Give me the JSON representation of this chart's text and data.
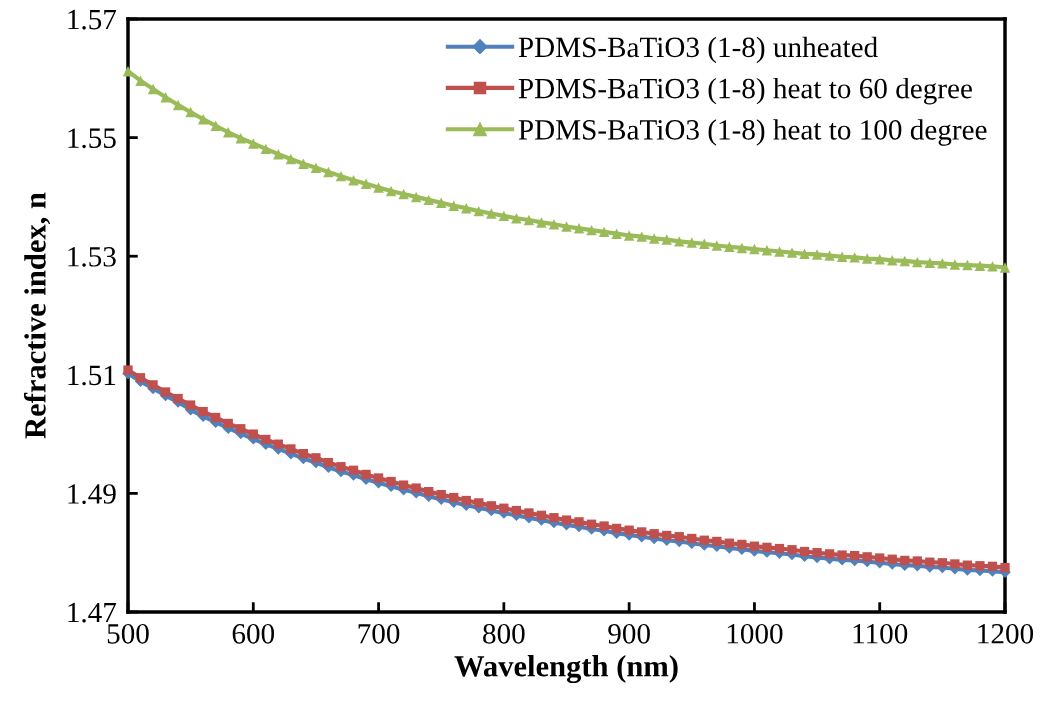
{
  "chart_data": {
    "type": "line",
    "xlabel": "Wavelength (nm)",
    "ylabel": "Refractive index, n",
    "x": [
      500,
      510,
      520,
      530,
      540,
      550,
      560,
      570,
      580,
      590,
      600,
      610,
      620,
      630,
      640,
      650,
      660,
      670,
      680,
      690,
      700,
      710,
      720,
      730,
      740,
      750,
      760,
      770,
      780,
      790,
      800,
      810,
      820,
      830,
      840,
      850,
      860,
      870,
      880,
      890,
      900,
      910,
      920,
      930,
      940,
      950,
      960,
      970,
      980,
      990,
      1000,
      1010,
      1020,
      1030,
      1040,
      1050,
      1060,
      1070,
      1080,
      1090,
      1100,
      1110,
      1120,
      1130,
      1140,
      1150,
      1160,
      1170,
      1180,
      1190,
      1200
    ],
    "series": [
      {
        "name": "PDMS-BaTiO3 (1-8) unheated",
        "color": "#4f81bd",
        "marker": "diamond",
        "values": [
          1.5102,
          1.5089,
          1.5077,
          1.5065,
          1.5054,
          1.5041,
          1.503,
          1.502,
          1.501,
          1.5001,
          1.4992,
          1.4983,
          1.4975,
          1.4967,
          1.4959,
          1.4952,
          1.4944,
          1.4937,
          1.4931,
          1.4924,
          1.4918,
          1.4912,
          1.4906,
          1.4901,
          1.4895,
          1.489,
          1.4885,
          1.488,
          1.4876,
          1.4871,
          1.4867,
          1.4863,
          1.4859,
          1.4855,
          1.4851,
          1.4847,
          1.4844,
          1.484,
          1.4837,
          1.4833,
          1.483,
          1.4827,
          1.4824,
          1.4821,
          1.4819,
          1.4816,
          1.4813,
          1.4811,
          1.4808,
          1.4806,
          1.4803,
          1.4801,
          1.4799,
          1.4797,
          1.4794,
          1.4792,
          1.479,
          1.4788,
          1.4787,
          1.4785,
          1.4783,
          1.4781,
          1.4779,
          1.4778,
          1.4776,
          1.4775,
          1.4773,
          1.4771,
          1.477,
          1.4769,
          1.4767
        ]
      },
      {
        "name": "PDMS-BaTiO3 (1-8) heat to 60 degree",
        "color": "#c0504d",
        "marker": "square",
        "values": [
          1.5108,
          1.5095,
          1.5083,
          1.5071,
          1.506,
          1.5049,
          1.5038,
          1.5028,
          1.5018,
          1.5009,
          1.5,
          1.4991,
          1.4983,
          1.4975,
          1.4967,
          1.496,
          1.4952,
          1.4945,
          1.4939,
          1.4932,
          1.4926,
          1.492,
          1.4914,
          1.4909,
          1.4903,
          1.4898,
          1.4893,
          1.4888,
          1.4884,
          1.4879,
          1.4875,
          1.4871,
          1.4867,
          1.4863,
          1.4859,
          1.4855,
          1.4852,
          1.4848,
          1.4845,
          1.4841,
          1.4838,
          1.4835,
          1.4832,
          1.4829,
          1.4827,
          1.4824,
          1.4821,
          1.4819,
          1.4816,
          1.4814,
          1.4811,
          1.4809,
          1.4807,
          1.4805,
          1.4802,
          1.48,
          1.4798,
          1.4796,
          1.4795,
          1.4793,
          1.4791,
          1.4789,
          1.4787,
          1.4786,
          1.4784,
          1.4783,
          1.4781,
          1.4779,
          1.4778,
          1.4777,
          1.4775
        ]
      },
      {
        "name": "PDMS-BaTiO3 (1-8) heat to 100 degree",
        "color": "#9bbb59",
        "marker": "triangle",
        "values": [
          1.5612,
          1.5596,
          1.5582,
          1.5568,
          1.5555,
          1.5543,
          1.5531,
          1.552,
          1.5509,
          1.5499,
          1.549,
          1.5481,
          1.5472,
          1.5464,
          1.5456,
          1.5449,
          1.5442,
          1.5435,
          1.5428,
          1.5422,
          1.5416,
          1.541,
          1.5405,
          1.54,
          1.5395,
          1.539,
          1.5385,
          1.5381,
          1.5376,
          1.5372,
          1.5368,
          1.5364,
          1.5361,
          1.5357,
          1.5354,
          1.535,
          1.5347,
          1.5344,
          1.5341,
          1.5338,
          1.5335,
          1.5333,
          1.533,
          1.5328,
          1.5325,
          1.5323,
          1.5321,
          1.5318,
          1.5316,
          1.5314,
          1.5312,
          1.531,
          1.5308,
          1.5306,
          1.5304,
          1.5303,
          1.5301,
          1.5299,
          1.5298,
          1.5296,
          1.5295,
          1.5293,
          1.5292,
          1.529,
          1.5289,
          1.5288,
          1.5286,
          1.5285,
          1.5284,
          1.5283,
          1.5281
        ]
      }
    ],
    "xlim": [
      500,
      1200
    ],
    "xticks": [
      500,
      600,
      700,
      800,
      900,
      1000,
      1100,
      1200
    ],
    "ylim": [
      1.47,
      1.57
    ],
    "yticks": [
      {
        "value": 1.47,
        "label": "1.47"
      },
      {
        "value": 1.49,
        "label": "1.49"
      },
      {
        "value": 1.51,
        "label": "1.51"
      },
      {
        "value": 1.53,
        "label": "1.53"
      },
      {
        "value": 1.55,
        "label": "1.55"
      },
      {
        "value": 1.57,
        "label": "1.57"
      }
    ],
    "grid": false,
    "legend": "top right",
    "line_style": "solid"
  }
}
